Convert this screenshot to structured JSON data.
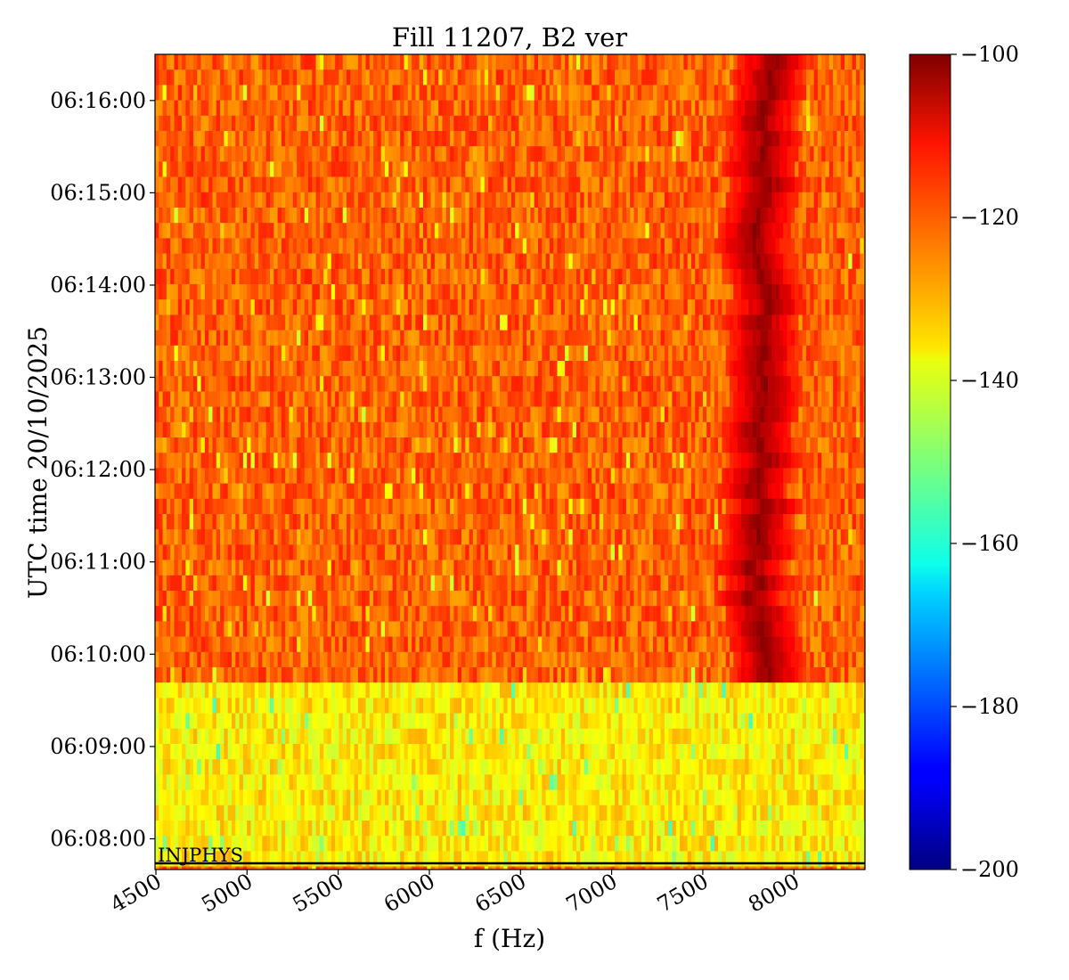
{
  "chart_data": {
    "type": "heatmap",
    "title": "Fill 11207, B2 ver",
    "xlabel": "f (Hz)",
    "ylabel": "UTC time 20/10/2025",
    "xlim": [
      4495,
      8390
    ],
    "ylim": [
      "06:07:40",
      "06:16:30"
    ],
    "x_ticks": [
      4500,
      5000,
      5500,
      6000,
      6500,
      7000,
      7500,
      8000
    ],
    "y_ticks": [
      "06:08:00",
      "06:09:00",
      "06:10:00",
      "06:11:00",
      "06:12:00",
      "06:13:00",
      "06:14:00",
      "06:15:00",
      "06:16:00"
    ],
    "colorbar": {
      "min": -200,
      "max": -100,
      "ticks": [
        -100,
        -120,
        -140,
        -160,
        -180,
        -200
      ],
      "colormap": "jet"
    },
    "regions": [
      {
        "t_start": "06:07:40",
        "t_end": "06:09:38",
        "typical_level": -136
      },
      {
        "t_start": "06:09:38",
        "t_end": "06:16:30",
        "typical_level": -122
      }
    ],
    "line_feature": {
      "description_level": -102,
      "points": [
        {
          "t": "06:09:45",
          "f": 7900
        },
        {
          "t": "06:10:30",
          "f": 7770
        },
        {
          "t": "06:11:30",
          "f": 7810
        },
        {
          "t": "06:12:30",
          "f": 7820
        },
        {
          "t": "06:13:30",
          "f": 7840
        },
        {
          "t": "06:14:30",
          "f": 7810
        },
        {
          "t": "06:15:30",
          "f": 7830
        },
        {
          "t": "06:16:30",
          "f": 7860
        }
      ]
    },
    "annotations": [
      {
        "text": "INJPHYS",
        "t": "06:07:40",
        "f": 4510
      }
    ]
  }
}
